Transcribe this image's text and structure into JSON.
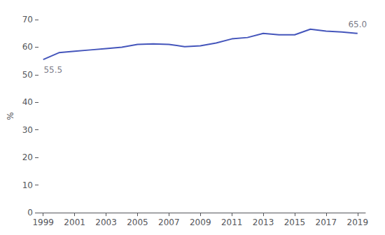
{
  "chart_data": {
    "type": "line",
    "x": [
      1999,
      2000,
      2001,
      2002,
      2003,
      2004,
      2005,
      2006,
      2007,
      2008,
      2009,
      2010,
      2011,
      2012,
      2013,
      2014,
      2015,
      2016,
      2017,
      2018,
      2019
    ],
    "values": [
      55.5,
      58.0,
      58.5,
      59.0,
      59.5,
      60.0,
      61.0,
      61.2,
      61.0,
      60.2,
      60.5,
      61.5,
      63.0,
      63.5,
      65.0,
      64.5,
      64.5,
      66.5,
      65.8,
      65.5,
      65.0
    ],
    "color": "#4455bb",
    "ylabel": "%",
    "xlim": [
      1998.7,
      2019.5
    ],
    "ylim": [
      0,
      70
    ],
    "xticks": [
      1999,
      2001,
      2003,
      2005,
      2007,
      2009,
      2011,
      2013,
      2015,
      2017,
      2019
    ],
    "yticks": [
      0,
      10,
      20,
      30,
      40,
      50,
      60,
      70
    ],
    "annotations": [
      {
        "text": "55.5",
        "x": 1999,
        "y": 55.5
      },
      {
        "text": "65.0",
        "x": 2019,
        "y": 65.0
      }
    ],
    "grid": false
  }
}
